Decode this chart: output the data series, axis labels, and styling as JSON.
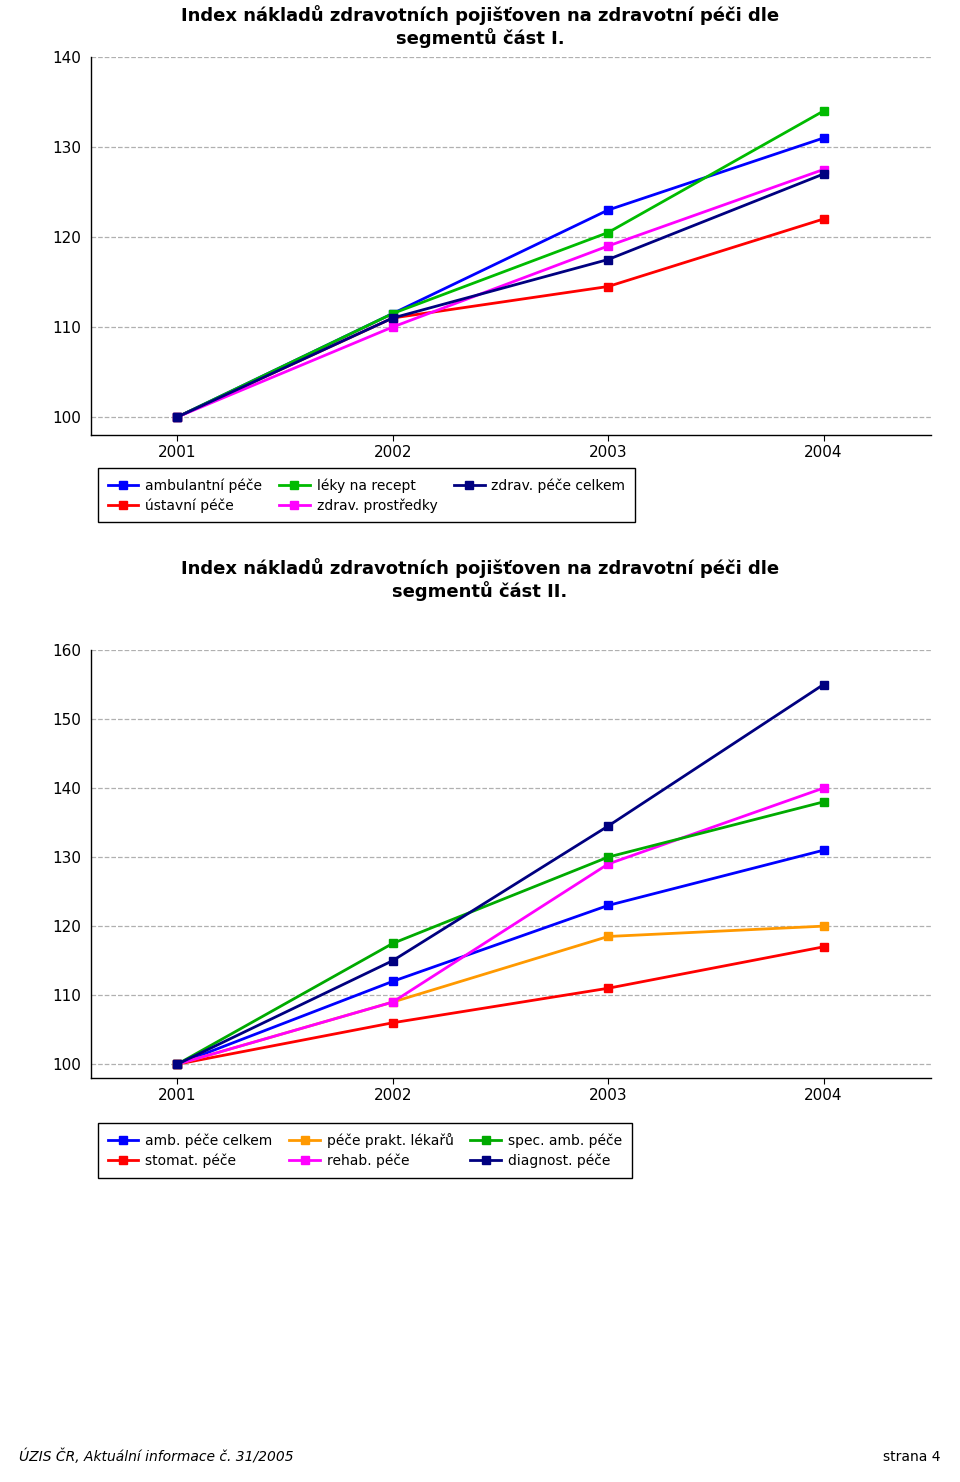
{
  "chart1": {
    "title": "Index nákladů zdravotních pojišťoven na zdravotní péči dle\nsegmentů část I.",
    "years": [
      2001,
      2002,
      2003,
      2004
    ],
    "series": [
      {
        "label": "ambulantní péče",
        "color": "#0000FF",
        "values": [
          100,
          111.5,
          123.0,
          131.0
        ],
        "marker": "s"
      },
      {
        "label": "ústavní péče",
        "color": "#FF0000",
        "values": [
          100,
          111.0,
          114.5,
          122.0
        ],
        "marker": "s"
      },
      {
        "label": "léky na recept",
        "color": "#00BB00",
        "values": [
          100,
          111.5,
          120.5,
          134.0
        ],
        "marker": "s"
      },
      {
        "label": "zdrav. prostředky",
        "color": "#FF00FF",
        "values": [
          100,
          110.0,
          119.0,
          127.5
        ],
        "marker": "s"
      },
      {
        "label": "zdrav. péče celkem",
        "color": "#000080",
        "values": [
          100,
          111.0,
          117.5,
          127.0
        ],
        "marker": "s"
      }
    ],
    "ylim": [
      98,
      140
    ],
    "yticks": [
      100,
      110,
      120,
      130,
      140
    ],
    "legend_order": [
      0,
      1,
      2,
      3,
      4
    ],
    "legend_ncol": 3
  },
  "chart2": {
    "title": "Index nákladů zdravotních pojišťoven na zdravotní péči dle\nsegmentů část II.",
    "years": [
      2001,
      2002,
      2003,
      2004
    ],
    "series": [
      {
        "label": "amb. péče celkem",
        "color": "#0000FF",
        "values": [
          100,
          112.0,
          123.0,
          131.0
        ],
        "marker": "s"
      },
      {
        "label": "stomat. péče",
        "color": "#FF0000",
        "values": [
          100,
          106.0,
          111.0,
          117.0
        ],
        "marker": "s"
      },
      {
        "label": "péče prakt. lékařů",
        "color": "#FF9900",
        "values": [
          100,
          109.0,
          118.5,
          120.0
        ],
        "marker": "s"
      },
      {
        "label": "rehab. péče",
        "color": "#FF00FF",
        "values": [
          100,
          109.0,
          129.0,
          140.0
        ],
        "marker": "s"
      },
      {
        "label": "spec. amb. péče",
        "color": "#00AA00",
        "values": [
          100,
          117.5,
          130.0,
          138.0
        ],
        "marker": "s"
      },
      {
        "label": "diagnost. péče",
        "color": "#000080",
        "values": [
          100,
          115.0,
          134.5,
          155.0
        ],
        "marker": "s"
      }
    ],
    "ylim": [
      98,
      160
    ],
    "yticks": [
      100,
      110,
      120,
      130,
      140,
      150,
      160
    ],
    "legend_ncol": 3
  },
  "footer_left": "ÚZIS ČR, Aktuální informace č. 31/2005",
  "footer_right": "strana 4",
  "bg_color": "#FFFFFF",
  "grid_color": "#B0B0B0",
  "axis_color": "#000000",
  "tick_fontsize": 11,
  "title_fontsize": 13,
  "legend_fontsize": 10,
  "footer_fontsize": 10
}
